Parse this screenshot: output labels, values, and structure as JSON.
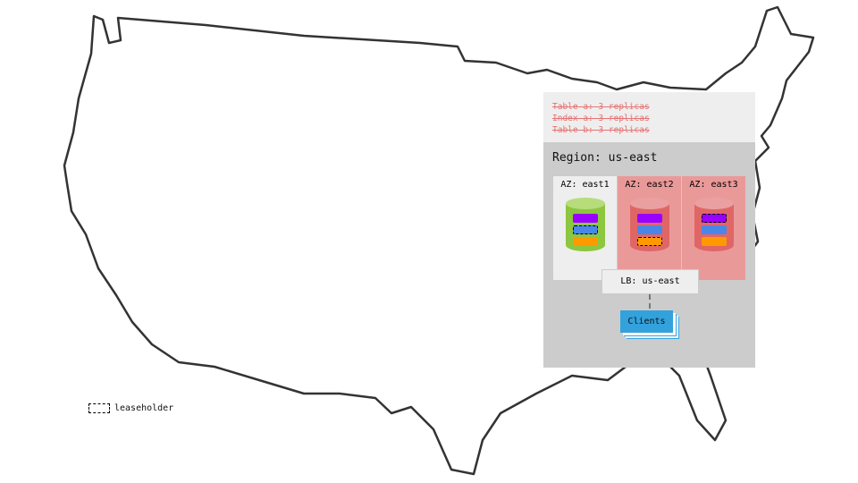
{
  "tables": [
    "Table a: 3 replicas",
    "Index a: 3 replicas",
    "Table b: 3 replicas"
  ],
  "region": {
    "title": "Region: us-east",
    "azs": [
      {
        "label": "AZ: east1",
        "status": "healthy",
        "leaseholder_bar": 1
      },
      {
        "label": "AZ: east2",
        "status": "failed",
        "leaseholder_bar": 2
      },
      {
        "label": "AZ: east3",
        "status": "failed",
        "leaseholder_bar": 0
      }
    ],
    "lb": "LB: us-east",
    "clients": "Clients"
  },
  "legend": {
    "leaseholder": "leaseholder"
  },
  "colors": {
    "healthy": "#8dc63f",
    "failed": "#e06666",
    "failed_bg": "#ea9999",
    "bar_purple": "#9900ff",
    "bar_blue": "#4a86e8",
    "bar_orange": "#ff9900",
    "clients": "#33a2dc"
  }
}
